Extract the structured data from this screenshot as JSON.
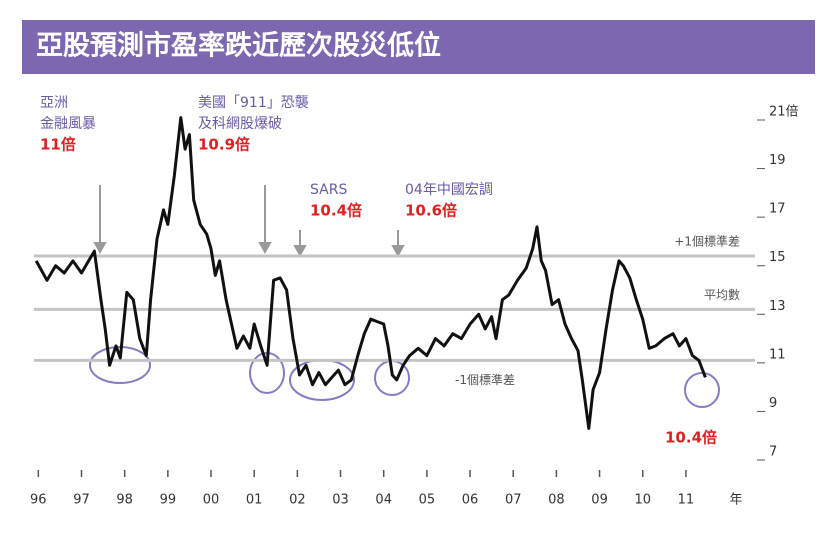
{
  "chart_data": {
    "type": "line",
    "title": "亞股預測市盈率跌近歷次股災低位",
    "color": "#111111",
    "x": [
      1995.95,
      1996.2,
      1996.4,
      1996.6,
      1996.8,
      1997.0,
      1997.2,
      1997.3,
      1997.45,
      1997.55,
      1997.65,
      1997.8,
      1997.9,
      1998.05,
      1998.2,
      1998.35,
      1998.5,
      1998.6,
      1998.75,
      1998.9,
      1999.0,
      1999.15,
      1999.3,
      1999.4,
      1999.5,
      1999.6,
      1999.75,
      1999.9,
      2000.0,
      2000.1,
      2000.2,
      2000.35,
      2000.5,
      2000.6,
      2000.75,
      2000.9,
      2001.0,
      2001.15,
      2001.3,
      2001.45,
      2001.6,
      2001.75,
      2001.9,
      2002.05,
      2002.2,
      2002.35,
      2002.5,
      2002.65,
      2002.8,
      2002.95,
      2003.1,
      2003.25,
      2003.4,
      2003.55,
      2003.7,
      2003.85,
      2004.0,
      2004.1,
      2004.2,
      2004.3,
      2004.45,
      2004.6,
      2004.8,
      2005.0,
      2005.2,
      2005.4,
      2005.6,
      2005.8,
      2006.0,
      2006.2,
      2006.35,
      2006.5,
      2006.6,
      2006.75,
      2006.9,
      2007.1,
      2007.3,
      2007.45,
      2007.55,
      2007.65,
      2007.75,
      2007.9,
      2008.05,
      2008.2,
      2008.35,
      2008.5,
      2008.6,
      2008.75,
      2008.85,
      2009.0,
      2009.15,
      2009.3,
      2009.45,
      2009.55,
      2009.7,
      2009.85,
      2010.0,
      2010.15,
      2010.3,
      2010.5,
      2010.7,
      2010.85,
      2011.0,
      2011.15,
      2011.3,
      2011.45
    ],
    "values": [
      15.2,
      14.4,
      15.0,
      14.7,
      15.2,
      14.7,
      15.3,
      15.6,
      13.6,
      12.4,
      10.9,
      11.7,
      11.2,
      13.9,
      13.6,
      12.0,
      11.3,
      13.6,
      16.1,
      17.3,
      16.7,
      18.7,
      21.1,
      19.8,
      20.4,
      17.7,
      16.7,
      16.3,
      15.7,
      14.6,
      15.2,
      13.6,
      12.4,
      11.6,
      12.1,
      11.6,
      12.6,
      11.7,
      10.9,
      14.4,
      14.5,
      14.0,
      12.0,
      10.5,
      10.9,
      10.1,
      10.6,
      10.1,
      10.4,
      10.7,
      10.1,
      10.3,
      11.3,
      12.2,
      12.8,
      12.7,
      12.6,
      11.7,
      10.5,
      10.3,
      10.9,
      11.3,
      11.6,
      11.3,
      12.0,
      11.7,
      12.2,
      12.0,
      12.6,
      13.0,
      12.4,
      12.9,
      12.0,
      13.6,
      13.8,
      14.4,
      14.9,
      15.7,
      16.6,
      15.2,
      14.8,
      13.4,
      13.6,
      12.6,
      12.0,
      11.5,
      10.3,
      8.3,
      9.9,
      10.6,
      12.4,
      14.0,
      15.2,
      15.0,
      14.5,
      13.6,
      12.8,
      11.6,
      11.7,
      12.0,
      12.2,
      11.7,
      12.0,
      11.3,
      11.1,
      10.4
    ],
    "xlim": [
      1995.9,
      2012.6
    ],
    "xticks": [
      {
        "value": 1996,
        "label": "96"
      },
      {
        "value": 1997,
        "label": "97"
      },
      {
        "value": 1998,
        "label": "98"
      },
      {
        "value": 1999,
        "label": "99"
      },
      {
        "value": 2000,
        "label": "00"
      },
      {
        "value": 2001,
        "label": "01"
      },
      {
        "value": 2002,
        "label": "02"
      },
      {
        "value": 2003,
        "label": "03"
      },
      {
        "value": 2004,
        "label": "04"
      },
      {
        "value": 2005,
        "label": "05"
      },
      {
        "value": 2006,
        "label": "06"
      },
      {
        "value": 2007,
        "label": "07"
      },
      {
        "value": 2008,
        "label": "08"
      },
      {
        "value": 2009,
        "label": "09"
      },
      {
        "value": 2010,
        "label": "10"
      },
      {
        "value": 2011,
        "label": "11"
      }
    ],
    "x_label": "年",
    "ylim": [
      7,
      21
    ],
    "yticks": [
      7,
      9,
      11,
      13,
      15,
      17,
      19,
      {
        "value": 21,
        "label": "21倍"
      }
    ],
    "reference_lines": [
      {
        "value": 15.4,
        "label": "+1個標準差"
      },
      {
        "value": 13.2,
        "label": "平均數"
      },
      {
        "value": 11.1,
        "label": "-1個標準差"
      }
    ],
    "annotations": [
      {
        "lines": [
          "亞洲",
          "金融風暴"
        ],
        "label": "11倍"
      },
      {
        "lines": [
          "美國「911」恐襲",
          "及科網股爆破"
        ],
        "label": "10.9倍"
      },
      {
        "lines": [
          "SARS"
        ],
        "label": "10.4倍"
      },
      {
        "lines": [
          "04年中國宏調"
        ],
        "label": "10.6倍"
      },
      {
        "lines": [],
        "label": "10.4倍"
      }
    ]
  }
}
